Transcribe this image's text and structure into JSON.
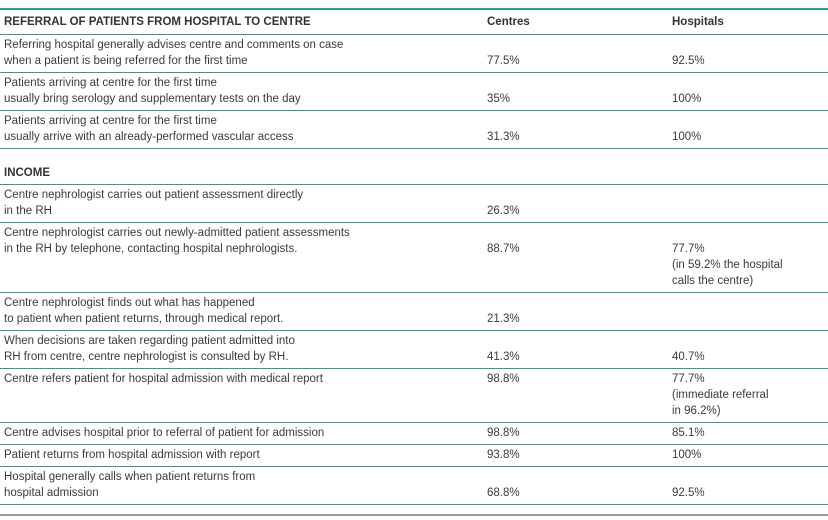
{
  "meta": {
    "accent_color": "#2f9c8e",
    "text_color": "#3b3b3b"
  },
  "table": {
    "header": {
      "title": "REFERRAL OF PATIENTS FROM HOSPITAL TO CENTRE",
      "centres_label": "Centres",
      "hospitals_label": "Hospitals"
    },
    "rows": [
      {
        "label_lines": [
          "Referring hospital generally advises centre and comments on case",
          "when a patient is being referred for the first time"
        ],
        "centres": "77.5%",
        "hospitals_lines": [
          "92.5%"
        ],
        "value_line": 2
      },
      {
        "label_lines": [
          "Patients arriving at centre for the first time",
          "usually bring serology and supplementary tests on the day"
        ],
        "centres": "35%",
        "hospitals_lines": [
          "100%"
        ],
        "value_line": 2
      },
      {
        "label_lines": [
          "Patients arriving at centre for the first time",
          "usually arrive with an already-performed vascular access"
        ],
        "centres": "31.3%",
        "hospitals_lines": [
          "100%"
        ],
        "value_line": 2
      },
      {
        "spacer": true
      },
      {
        "section": "INCOME"
      },
      {
        "label_lines": [
          "Centre nephrologist carries out patient assessment directly",
          "in the RH"
        ],
        "centres": "26.3%",
        "hospitals_lines": [],
        "value_line": 2
      },
      {
        "label_lines": [
          "Centre nephrologist carries out newly-admitted patient assessments",
          "in the RH by telephone, contacting hospital nephrologists."
        ],
        "centres": "88.7%",
        "hospitals_lines": [
          "77.7%",
          "(in 59.2% the hospital",
          "calls the centre)"
        ],
        "value_line": 2
      },
      {
        "label_lines": [
          "Centre nephrologist finds out what has happened",
          "to patient when patient returns, through medical report."
        ],
        "centres": "21.3%",
        "hospitals_lines": [],
        "value_line": 2
      },
      {
        "label_lines": [
          "When decisions are taken regarding patient admitted into",
          "RH from centre, centre nephrologist is consulted by RH."
        ],
        "centres": "41.3%",
        "hospitals_lines": [
          "40.7%"
        ],
        "value_line": 2
      },
      {
        "label_lines": [
          "Centre refers patient for hospital admission with medical report"
        ],
        "centres": "98.8%",
        "hospitals_lines": [
          "77.7%",
          "(immediate referral",
          "in 96.2%)"
        ],
        "value_line": 1
      },
      {
        "label_lines": [
          "Centre advises hospital prior to referral of patient for admission"
        ],
        "centres": "98.8%",
        "hospitals_lines": [
          "85.1%"
        ],
        "value_line": 1
      },
      {
        "label_lines": [
          "Patient returns from hospital admission with report"
        ],
        "centres": "93.8%",
        "hospitals_lines": [
          "100%"
        ],
        "value_line": 1
      },
      {
        "label_lines": [
          "Hospital generally calls when patient returns from",
          "hospital admission"
        ],
        "centres": "68.8%",
        "hospitals_lines": [
          "92.5%"
        ],
        "value_line": 2
      }
    ]
  }
}
